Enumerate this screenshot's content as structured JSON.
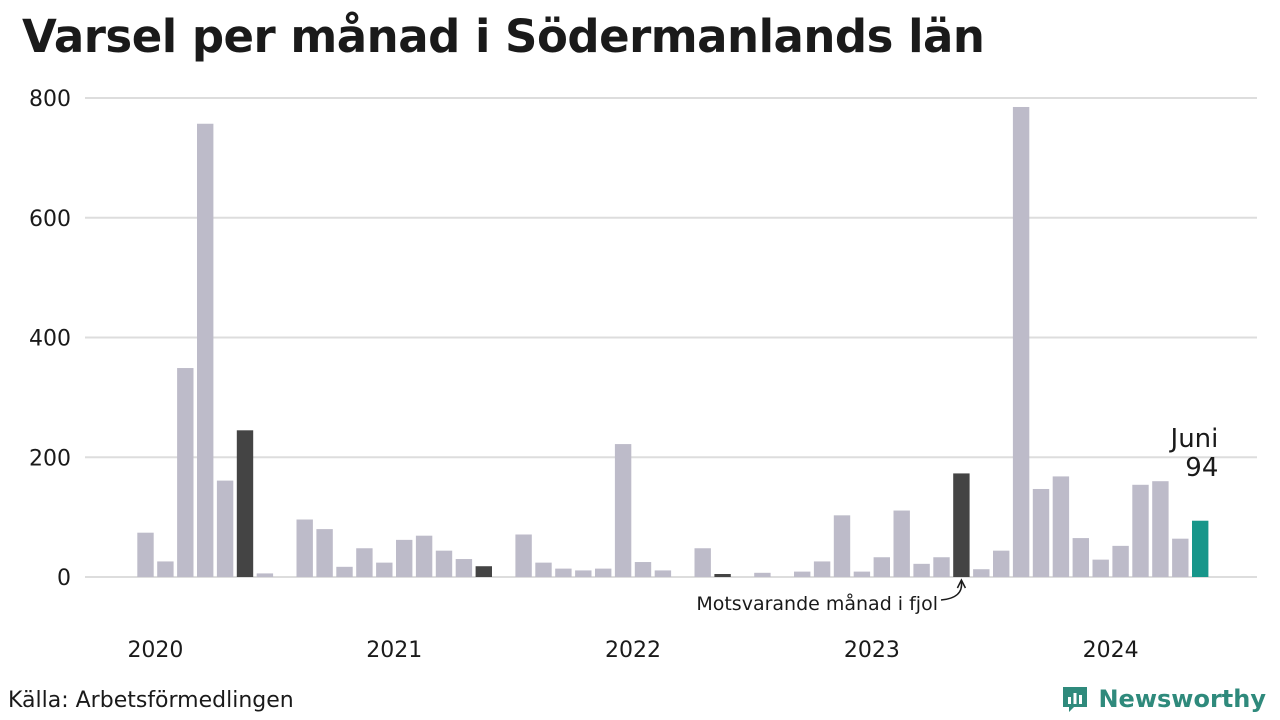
{
  "title": "Varsel per månad i Södermanlands län",
  "source": "Källa: Arbetsförmedlingen",
  "brand": {
    "name": "Newsworthy",
    "icon": "newsworthy-logo-icon"
  },
  "colors": {
    "default": "#bdbbc9",
    "same_month": "#444444",
    "current": "#17968a",
    "grid": "#dddddd",
    "brand": "#2f8a7c"
  },
  "annotations": {
    "same_month_label": "Motsvarande månad i fjol",
    "current_month": "Juni",
    "current_value": "94"
  },
  "chart_data": {
    "type": "bar",
    "title": "Varsel per månad i Södermanlands län",
    "xlabel": "",
    "ylabel": "",
    "ylim": [
      0,
      800
    ],
    "yticks": [
      0,
      200,
      400,
      600,
      800
    ],
    "xtick_labels": [
      "2020",
      "2021",
      "2022",
      "2023",
      "2024"
    ],
    "categories": [
      "2020-01",
      "2020-02",
      "2020-03",
      "2020-04",
      "2020-05",
      "2020-06",
      "2020-07",
      "2020-08",
      "2020-09",
      "2020-10",
      "2020-11",
      "2020-12",
      "2021-01",
      "2021-02",
      "2021-03",
      "2021-04",
      "2021-05",
      "2021-06",
      "2021-07",
      "2021-08",
      "2021-09",
      "2021-10",
      "2021-11",
      "2021-12",
      "2022-01",
      "2022-02",
      "2022-03",
      "2022-04",
      "2022-05",
      "2022-06",
      "2022-07",
      "2022-08",
      "2022-09",
      "2022-10",
      "2022-11",
      "2022-12",
      "2023-01",
      "2023-02",
      "2023-03",
      "2023-04",
      "2023-05",
      "2023-06",
      "2023-07",
      "2023-08",
      "2023-09",
      "2023-10",
      "2023-11",
      "2023-12",
      "2024-01",
      "2024-02",
      "2024-03",
      "2024-04",
      "2024-05",
      "2024-06"
    ],
    "values": [
      74,
      26,
      349,
      757,
      161,
      245,
      6,
      0,
      96,
      80,
      17,
      48,
      24,
      62,
      69,
      44,
      30,
      18,
      0,
      71,
      24,
      14,
      11,
      14,
      222,
      25,
      11,
      0,
      48,
      5,
      0,
      7,
      0,
      9,
      26,
      103,
      9,
      33,
      111,
      22,
      33,
      173,
      13,
      44,
      785,
      147,
      168,
      65,
      29,
      52,
      154,
      160,
      64,
      94
    ],
    "highlight_same_month": [
      "2020-06",
      "2021-06",
      "2022-06",
      "2023-06"
    ],
    "highlight_current": "2024-06"
  }
}
